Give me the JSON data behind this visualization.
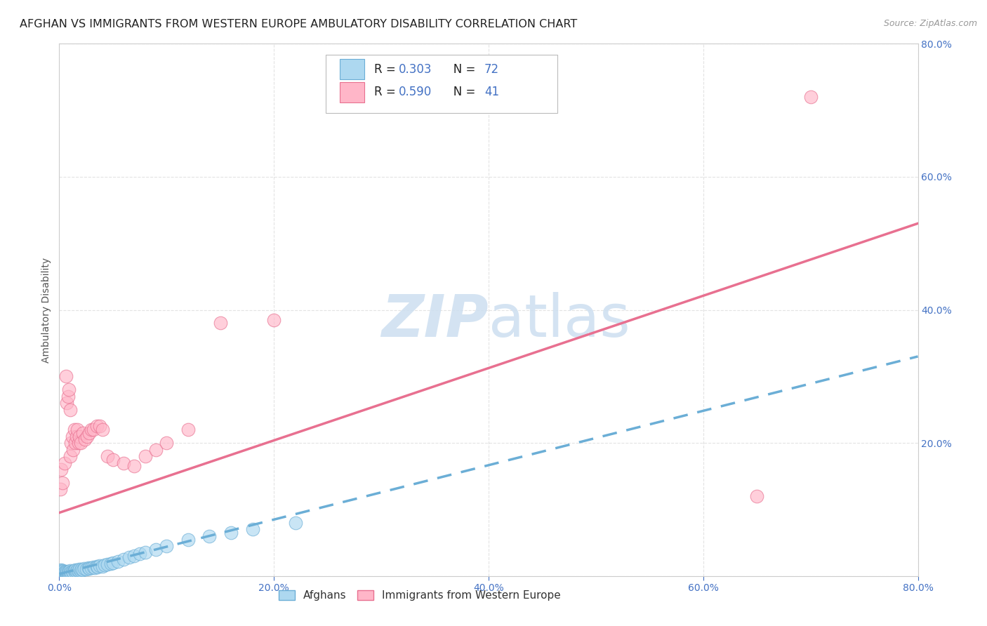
{
  "title": "AFGHAN VS IMMIGRANTS FROM WESTERN EUROPE AMBULATORY DISABILITY CORRELATION CHART",
  "source": "Source: ZipAtlas.com",
  "ylabel": "Ambulatory Disability",
  "xlim": [
    0.0,
    0.8
  ],
  "ylim": [
    0.0,
    0.8
  ],
  "background_color": "#ffffff",
  "grid_color": "#e0e0e0",
  "afghan_color": "#add8f0",
  "afghan_edge_color": "#6baed6",
  "western_europe_color": "#ffb6c8",
  "western_europe_edge_color": "#e87090",
  "afghan_R": 0.303,
  "afghan_N": 72,
  "western_europe_R": 0.59,
  "western_europe_N": 41,
  "legend_color": "#4472c4",
  "watermark_color": "#cddff0",
  "title_fontsize": 11.5,
  "axis_label_fontsize": 10,
  "tick_fontsize": 10,
  "afghan_scatter_x": [
    0.001,
    0.001,
    0.001,
    0.001,
    0.002,
    0.002,
    0.002,
    0.002,
    0.002,
    0.003,
    0.003,
    0.003,
    0.003,
    0.003,
    0.004,
    0.004,
    0.004,
    0.005,
    0.005,
    0.005,
    0.006,
    0.006,
    0.006,
    0.007,
    0.007,
    0.008,
    0.008,
    0.009,
    0.009,
    0.01,
    0.01,
    0.011,
    0.012,
    0.013,
    0.014,
    0.015,
    0.015,
    0.016,
    0.017,
    0.018,
    0.019,
    0.02,
    0.021,
    0.022,
    0.023,
    0.025,
    0.027,
    0.028,
    0.03,
    0.032,
    0.033,
    0.035,
    0.036,
    0.038,
    0.04,
    0.042,
    0.045,
    0.048,
    0.05,
    0.055,
    0.06,
    0.065,
    0.07,
    0.075,
    0.08,
    0.09,
    0.1,
    0.12,
    0.14,
    0.16,
    0.18,
    0.22
  ],
  "afghan_scatter_y": [
    0.005,
    0.006,
    0.007,
    0.008,
    0.004,
    0.005,
    0.006,
    0.007,
    0.009,
    0.003,
    0.004,
    0.005,
    0.006,
    0.008,
    0.004,
    0.005,
    0.007,
    0.003,
    0.005,
    0.006,
    0.004,
    0.005,
    0.007,
    0.004,
    0.006,
    0.004,
    0.006,
    0.004,
    0.007,
    0.005,
    0.008,
    0.006,
    0.007,
    0.006,
    0.008,
    0.006,
    0.009,
    0.007,
    0.009,
    0.008,
    0.01,
    0.008,
    0.01,
    0.009,
    0.011,
    0.01,
    0.012,
    0.011,
    0.012,
    0.013,
    0.012,
    0.014,
    0.013,
    0.015,
    0.014,
    0.016,
    0.018,
    0.019,
    0.02,
    0.022,
    0.025,
    0.028,
    0.03,
    0.033,
    0.035,
    0.04,
    0.045,
    0.055,
    0.06,
    0.065,
    0.07,
    0.08
  ],
  "western_scatter_x": [
    0.001,
    0.002,
    0.003,
    0.005,
    0.006,
    0.007,
    0.008,
    0.009,
    0.01,
    0.01,
    0.011,
    0.012,
    0.013,
    0.014,
    0.015,
    0.016,
    0.017,
    0.018,
    0.019,
    0.02,
    0.022,
    0.024,
    0.026,
    0.028,
    0.03,
    0.032,
    0.035,
    0.038,
    0.04,
    0.045,
    0.05,
    0.06,
    0.07,
    0.08,
    0.09,
    0.1,
    0.12,
    0.15,
    0.2,
    0.65,
    0.7
  ],
  "western_scatter_y": [
    0.13,
    0.16,
    0.14,
    0.17,
    0.3,
    0.26,
    0.27,
    0.28,
    0.25,
    0.18,
    0.2,
    0.21,
    0.19,
    0.22,
    0.2,
    0.21,
    0.22,
    0.2,
    0.21,
    0.2,
    0.215,
    0.205,
    0.21,
    0.215,
    0.22,
    0.22,
    0.225,
    0.225,
    0.22,
    0.18,
    0.175,
    0.17,
    0.165,
    0.18,
    0.19,
    0.2,
    0.22,
    0.38,
    0.385,
    0.12,
    0.72
  ],
  "afghan_line_x": [
    0.0,
    0.8
  ],
  "afghan_line_y": [
    0.003,
    0.33
  ],
  "western_line_x": [
    0.0,
    0.8
  ],
  "western_line_y": [
    0.095,
    0.53
  ]
}
